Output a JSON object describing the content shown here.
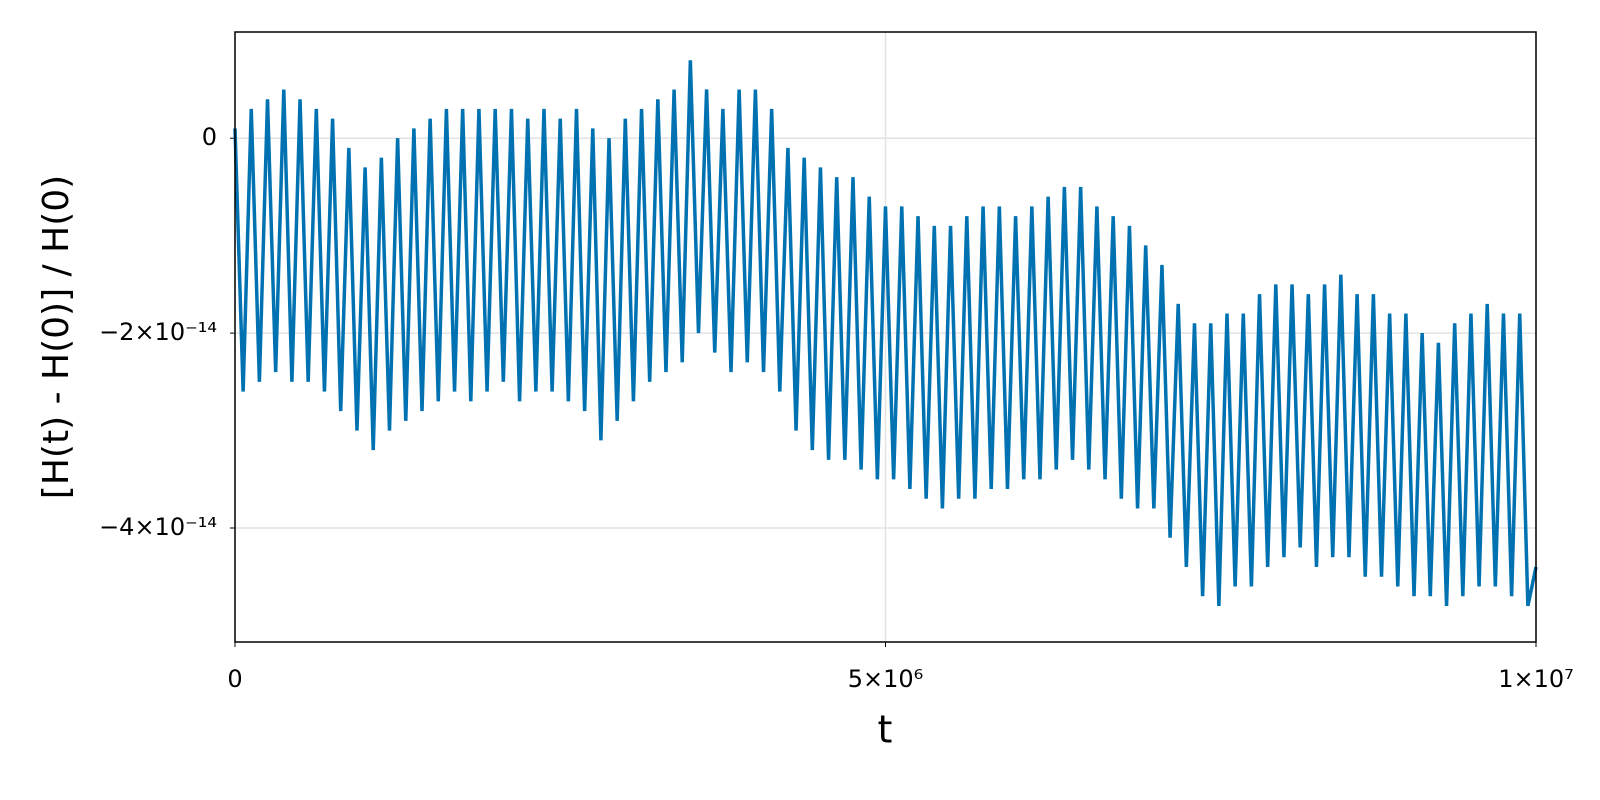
{
  "chart_data": {
    "type": "line",
    "xlabel": "t",
    "ylabel": "[H(t) - H(0)] / H(0)",
    "color": "#0072b2",
    "grid": true,
    "xlim": [
      0,
      10000000
    ],
    "ylim": [
      -5.17e-14,
      1.09e-14
    ],
    "xticks": [
      0,
      {
        "value": 5000000,
        "label": "5×10⁶"
      },
      {
        "value": 10000000,
        "label": "1×10⁷"
      }
    ],
    "yticks": [
      {
        "value": -4e-14,
        "label": "−4×10⁻¹⁴"
      },
      {
        "value": -2e-14,
        "label": "−2×10⁻¹⁴"
      },
      0
    ],
    "x": [
      0,
      62500,
      125000,
      187500,
      250000,
      312500,
      375000,
      437500,
      500000,
      562500,
      625000,
      687500,
      750000,
      812500,
      875000,
      937500,
      1000000,
      1062500,
      1125000,
      1187500,
      1250000,
      1312500,
      1375000,
      1437500,
      1500000,
      1562500,
      1625000,
      1687500,
      1750000,
      1812500,
      1875000,
      1937500,
      2000000,
      2062500,
      2125000,
      2187500,
      2250000,
      2312500,
      2375000,
      2437500,
      2500000,
      2562500,
      2625000,
      2687500,
      2750000,
      2812500,
      2875000,
      2937500,
      3000000,
      3062500,
      3125000,
      3187500,
      3250000,
      3312500,
      3375000,
      3437500,
      3500000,
      3562500,
      3625000,
      3687500,
      3750000,
      3812500,
      3875000,
      3937500,
      4000000,
      4062500,
      4125000,
      4187500,
      4250000,
      4312500,
      4375000,
      4437500,
      4500000,
      4562500,
      4625000,
      4687500,
      4750000,
      4812500,
      4875000,
      4937500,
      5000000,
      5062500,
      5125000,
      5187500,
      5250000,
      5312500,
      5375000,
      5437500,
      5500000,
      5562500,
      5625000,
      5687500,
      5750000,
      5812500,
      5875000,
      5937500,
      6000000,
      6062500,
      6125000,
      6187500,
      6250000,
      6312500,
      6375000,
      6437500,
      6500000,
      6562500,
      6625000,
      6687500,
      6750000,
      6812500,
      6875000,
      6937500,
      7000000,
      7062500,
      7125000,
      7187500,
      7250000,
      7312500,
      7375000,
      7437500,
      7500000,
      7562500,
      7625000,
      7687500,
      7750000,
      7812500,
      7875000,
      7937500,
      8000000,
      8062500,
      8125000,
      8187500,
      8250000,
      8312500,
      8375000,
      8437500,
      8500000,
      8562500,
      8625000,
      8687500,
      8750000,
      8812500,
      8875000,
      8937500,
      9000000,
      9062500,
      9125000,
      9187500,
      9250000,
      9312500,
      9375000,
      9437500,
      9500000,
      9562500,
      9625000,
      9687500,
      9750000,
      9812500,
      9875000,
      9937500,
      10000000
    ],
    "values": [
      1e-15,
      -2.6e-14,
      3e-15,
      -2.5e-14,
      4e-15,
      -2.4e-14,
      5e-15,
      -2.5e-14,
      4e-15,
      -2.5e-14,
      3e-15,
      -2.6e-14,
      2e-15,
      -2.8e-14,
      -1e-15,
      -3e-14,
      -3e-15,
      -3.2e-14,
      -2e-15,
      -3e-14,
      0,
      -2.9e-14,
      1e-15,
      -2.8e-14,
      2e-15,
      -2.7e-14,
      3e-15,
      -2.6e-14,
      3e-15,
      -2.7e-14,
      3e-15,
      -2.6e-14,
      3e-15,
      -2.5e-14,
      3e-15,
      -2.7e-14,
      2e-15,
      -2.6e-14,
      3e-15,
      -2.6e-14,
      2e-15,
      -2.7e-14,
      3e-15,
      -2.8e-14,
      1e-15,
      -3.1e-14,
      0,
      -2.9e-14,
      2e-15,
      -2.7e-14,
      3e-15,
      -2.5e-14,
      4e-15,
      -2.4e-14,
      5e-15,
      -2.3e-14,
      8e-15,
      -2e-14,
      5e-15,
      -2.2e-14,
      3e-15,
      -2.4e-14,
      5e-15,
      -2.3e-14,
      5e-15,
      -2.4e-14,
      3e-15,
      -2.6e-14,
      -1e-15,
      -3e-14,
      -2e-15,
      -3.2e-14,
      -3e-15,
      -3.3e-14,
      -4e-15,
      -3.3e-14,
      -4e-15,
      -3.4e-14,
      -6e-15,
      -3.5e-14,
      -7e-15,
      -3.5e-14,
      -7e-15,
      -3.6e-14,
      -8e-15,
      -3.7e-14,
      -9e-15,
      -3.8e-14,
      -9e-15,
      -3.7e-14,
      -8e-15,
      -3.7e-14,
      -7e-15,
      -3.6e-14,
      -7e-15,
      -3.6e-14,
      -8e-15,
      -3.5e-14,
      -7e-15,
      -3.5e-14,
      -6e-15,
      -3.4e-14,
      -5e-15,
      -3.3e-14,
      -5e-15,
      -3.4e-14,
      -7e-15,
      -3.5e-14,
      -8e-15,
      -3.7e-14,
      -9e-15,
      -3.8e-14,
      -1.1e-14,
      -3.8e-14,
      -1.3e-14,
      -4.1e-14,
      -1.7e-14,
      -4.4e-14,
      -1.9e-14,
      -4.7e-14,
      -1.9e-14,
      -4.8e-14,
      -1.8e-14,
      -4.6e-14,
      -1.8e-14,
      -4.6e-14,
      -1.6e-14,
      -4.4e-14,
      -1.5e-14,
      -4.3e-14,
      -1.5e-14,
      -4.2e-14,
      -1.6e-14,
      -4.4e-14,
      -1.5e-14,
      -4.3e-14,
      -1.4e-14,
      -4.3e-14,
      -1.6e-14,
      -4.5e-14,
      -1.6e-14,
      -4.5e-14,
      -1.8e-14,
      -4.6e-14,
      -1.8e-14,
      -4.7e-14,
      -2e-14,
      -4.7e-14,
      -2.1e-14,
      -4.8e-14,
      -1.9e-14,
      -4.7e-14,
      -1.8e-14,
      -4.6e-14,
      -1.7e-14,
      -4.6e-14,
      -1.8e-14,
      -4.7e-14,
      -1.8e-14,
      -4.8e-14,
      -4.4e-14
    ]
  }
}
